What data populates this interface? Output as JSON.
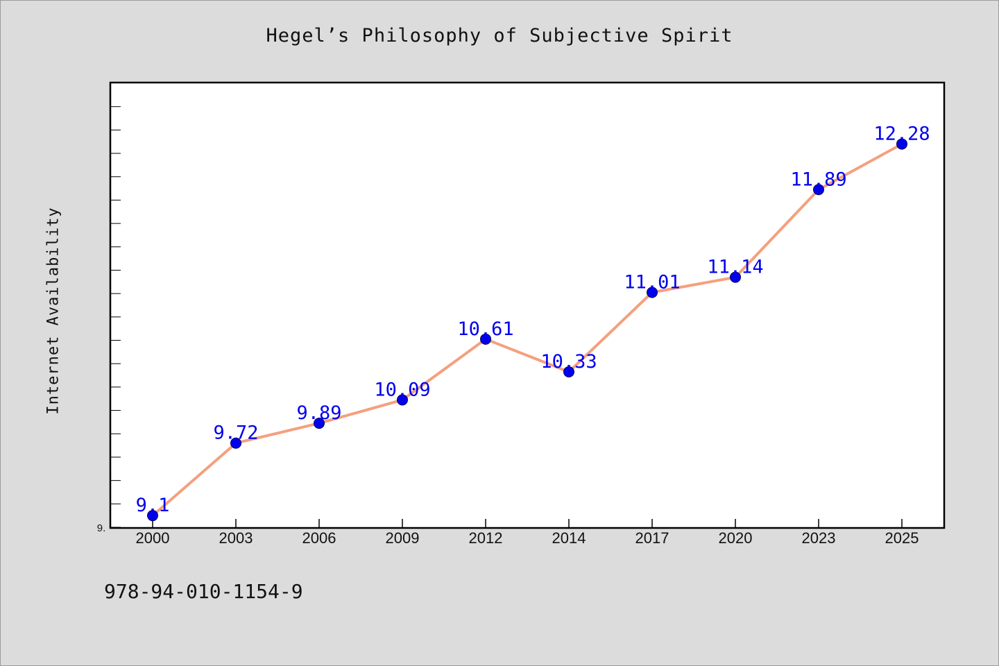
{
  "chart_data": {
    "type": "line",
    "title": "Hegel’s Philosophy of Subjective Spirit",
    "ylabel": "Internet Availability",
    "xlabel": "",
    "categories": [
      "2000",
      "2003",
      "2006",
      "2009",
      "2012",
      "2014",
      "2017",
      "2020",
      "2023",
      "2025"
    ],
    "values": [
      9.1,
      9.72,
      9.89,
      10.09,
      10.61,
      10.33,
      11.01,
      11.14,
      11.89,
      12.28
    ],
    "data_labels": [
      "9.1",
      "9.72",
      "9.89",
      "10.09",
      "10.61",
      "10.33",
      "11.01",
      "11.14",
      "11.89",
      "12.28"
    ],
    "y_tick_label": "9.",
    "ylim": [
      9.0,
      12.8
    ],
    "grid": false,
    "line_color": "#f4a07e",
    "marker_color": "#0000ee",
    "label_color": "#0000ee"
  },
  "footer": {
    "isbn": "978-94-010-1154-9"
  }
}
